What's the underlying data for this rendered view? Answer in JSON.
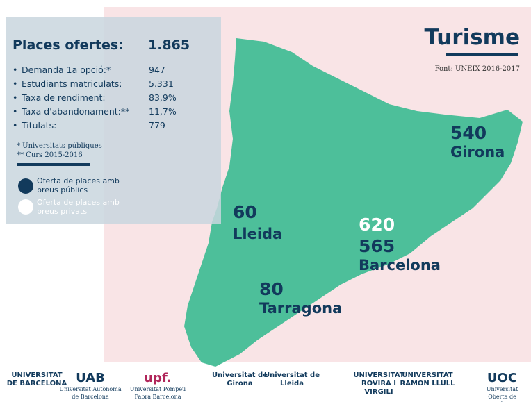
{
  "title": "Turisme",
  "source": "Font: UNEIX 2016-2017",
  "summary": {
    "label": "Places ofertes:",
    "value": "1.865"
  },
  "stats": [
    {
      "label": "Demanda 1a opció:*",
      "value": "947"
    },
    {
      "label": "Estudiants matriculats:",
      "value": "5.331"
    },
    {
      "label": "Taxa de rendiment:",
      "value": "83,9%"
    },
    {
      "label": "Taxa d'abandonament:**",
      "value": "11,7%"
    },
    {
      "label": "Titulats:",
      "value": "779"
    }
  ],
  "notes": [
    "* Universitats públiques",
    "** Curs 2015-2016"
  ],
  "legend": [
    {
      "label": "Oferta de places amb preus públics"
    },
    {
      "label": "Oferta de places amb preus privats"
    }
  ],
  "regions": [
    {
      "name": "Girona",
      "values": [
        "540"
      ]
    },
    {
      "name": "Lleida",
      "values": [
        "60"
      ]
    },
    {
      "name": "Barcelona",
      "values": [
        "620",
        "565"
      ]
    },
    {
      "name": "Tarragona",
      "values": [
        "80"
      ]
    }
  ],
  "universities": [
    {
      "mark": "UNIVERSITAT DE BARCELONA"
    },
    {
      "mark": "UAB",
      "name": "Universitat Autònoma de Barcelona"
    },
    {
      "mark": "upf.",
      "name": "Universitat Pompeu Fabra Barcelona"
    },
    {
      "mark": "Universitat de Girona"
    },
    {
      "mark": "Universitat de Lleida"
    },
    {
      "mark": "UNIVERSITAT ROVIRA I VIRGILI"
    },
    {
      "mark": "UNIVERSITAT RAMON LLULL"
    },
    {
      "mark": "UOC",
      "name": "Universitat Oberta de Catalunya"
    }
  ]
}
